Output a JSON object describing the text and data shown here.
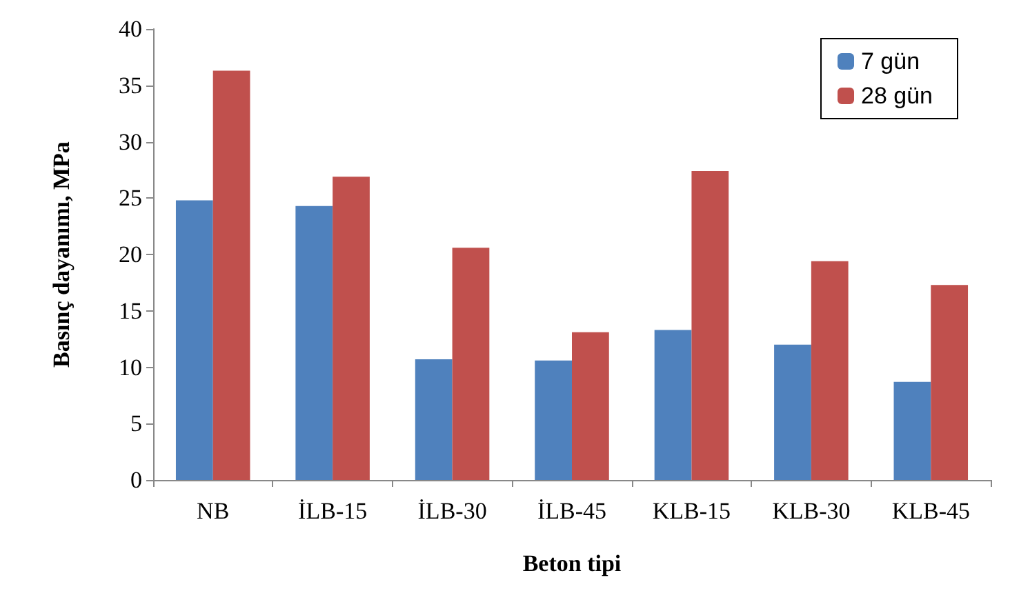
{
  "chart_data": {
    "type": "bar",
    "xlabel": "Beton tipi",
    "ylabel": "Basınç dayanımı, MPa",
    "categories": [
      "NB",
      "İLB-15",
      "İLB-30",
      "İLB-45",
      "KLB-15",
      "KLB-30",
      "KLB-45"
    ],
    "series": [
      {
        "name": "7 gün",
        "color": "#4f81bd",
        "values": [
          24.8,
          24.3,
          10.7,
          10.6,
          13.3,
          12.0,
          8.7
        ]
      },
      {
        "name": "28 gün",
        "color": "#c0504d",
        "values": [
          36.3,
          26.9,
          20.6,
          13.1,
          27.4,
          19.4,
          17.3
        ]
      }
    ],
    "ylim": [
      0,
      40
    ],
    "yticks": [
      0,
      5,
      10,
      15,
      20,
      25,
      30,
      35,
      40
    ],
    "grid": false,
    "legend": "top right"
  }
}
